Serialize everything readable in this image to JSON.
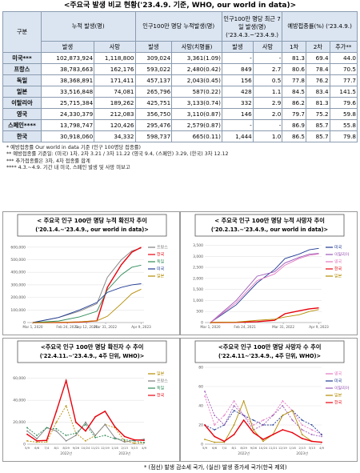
{
  "title": "<주요국 발생 비교 현황('23.4.9. 기준, WHO, our world in data)>",
  "table": {
    "headers": [
      "구분",
      "누적 발생(명)",
      "인구100만 명당 누적발생(명)",
      "인구100만 명당 최근 7일 발생(명) ('23.4.3.~'23.4.9.)",
      "예방접종률(%) ('23.4.9.)"
    ],
    "subheaders": [
      "발생",
      "사망",
      "발생",
      "사망(치명률)",
      "발생",
      "사망",
      "1차",
      "2차",
      "추가**"
    ],
    "rows": [
      [
        "미국***",
        "102,873,924",
        "1,118,800",
        "309,024",
        "3,361(1.09)",
        "-",
        "-",
        "81.3",
        "69.4",
        "44.0"
      ],
      [
        "프랑스",
        "38,783,663",
        "162,176",
        "593,022",
        "2,480(0.42)",
        "849",
        "2.7",
        "80.6",
        "78.4",
        "70.5"
      ],
      [
        "독일",
        "38,368,891",
        "171,411",
        "457,137",
        "2,043(0.45)",
        "156",
        "0.5",
        "77.8",
        "76.2",
        "77.7"
      ],
      [
        "일본",
        "33,516,848",
        "74,081",
        "265,796",
        "587(0.22)",
        "428",
        "1.1",
        "84.5",
        "83.4",
        "141.5"
      ],
      [
        "이탈리아",
        "25,715,384",
        "189,262",
        "425,751",
        "3,133(0.74)",
        "332",
        "2.9",
        "86.2",
        "81.3",
        "79.6"
      ],
      [
        "영국",
        "24,330,379",
        "212,083",
        "356,750",
        "3,110(0.87)",
        "146",
        "2.0",
        "79.7",
        "75.2",
        "59.8"
      ],
      [
        "스페인****",
        "13,798,747",
        "120,426",
        "295,476",
        "2,579(0.87)",
        "-",
        "-",
        "86.9",
        "85.7",
        "55.8"
      ],
      [
        "한국",
        "30,918,060",
        "34,332",
        "598,737",
        "665(0.11)",
        "1,444",
        "1.0",
        "86.5",
        "85.7",
        "79.8"
      ]
    ]
  },
  "notes": [
    "* 예방접종률 Our world in data 기준 (인구 100명당 접종률)",
    "** 예방접종률 기준일: (미국) 1차, 2차 3.21 / 3차 11.22 (영국 9.4, (스페인) 3.29, (한국) 3차 12.12",
    "*** 추가접종률은 3차, 4차 접종률 합계",
    "**** 4.3.~4.9. 기간 내 미국, 스페인 발생 및 사망 미보고"
  ],
  "charts": [
    {
      "type": "line",
      "title": "< 주요국 인구 100만 명당 누적 확진자 추이",
      "subtitle": "('20.1.4.~'23.4.9., our world in data)>",
      "x": [
        2020.16,
        2020.9,
        2021.5,
        2022.0,
        2022.3,
        2022.7,
        2023.0,
        2023.27
      ],
      "xlim": [
        2020.0,
        2023.35
      ],
      "xticks": [
        {
          "value": 2020.16,
          "label": "Mar 1, 2020"
        },
        {
          "value": 2021.15,
          "label": "Feb 24, 2021"
        },
        {
          "value": 2021.7,
          "label": "Sep 12, 2021"
        },
        {
          "value": 2022.25,
          "label": "Mar 31, 2022"
        },
        {
          "value": 2023.27,
          "label": "Apr 9, 2023"
        }
      ],
      "ylim": [
        0,
        650000
      ],
      "yticks": [
        0,
        {
          "value": 100000,
          "label": "100,000"
        },
        {
          "value": 200000,
          "label": "200,000"
        },
        {
          "value": 300000,
          "label": "300,000"
        },
        {
          "value": 400000,
          "label": "400,000"
        },
        {
          "value": 500000,
          "label": "500,000"
        },
        {
          "value": 600000,
          "label": "600,000"
        }
      ],
      "series": [
        {
          "name": "프랑스",
          "color": "#7f7f7f",
          "values": [
            0,
            40000,
            90000,
            150000,
            360000,
            500000,
            570000,
            593022
          ]
        },
        {
          "name": "한국",
          "color": "#e8000b",
          "values": [
            0,
            700,
            3500,
            14000,
            280000,
            460000,
            560000,
            598737
          ]
        },
        {
          "name": "독일",
          "color": "#2e8b57",
          "values": [
            0,
            12000,
            45000,
            90000,
            260000,
            380000,
            440000,
            457137
          ]
        },
        {
          "name": "미국",
          "color": "#1f3a93",
          "values": [
            0,
            40000,
            100000,
            160000,
            240000,
            280000,
            300000,
            309024
          ]
        },
        {
          "name": "일본",
          "color": "#b48c00",
          "values": [
            0,
            1000,
            6000,
            14000,
            50000,
            150000,
            230000,
            265796
          ]
        }
      ]
    },
    {
      "type": "line",
      "title": "< 주요국 인구 100만 명당 누적 사망자 추이",
      "subtitle": "('20.2.13.~'23.4.9., our world in data)>",
      "x": [
        2020.16,
        2020.9,
        2021.5,
        2022.0,
        2022.3,
        2022.7,
        2023.0,
        2023.27
      ],
      "xlim": [
        2020.0,
        2023.35
      ],
      "xticks": [
        {
          "value": 2020.16,
          "label": "Mar 1, 2020"
        },
        {
          "value": 2021.15,
          "label": "Feb 24, 2021"
        },
        {
          "value": 2022.25,
          "label": "Mar 31, 2022"
        },
        {
          "value": 2023.27,
          "label": "Apr 9, 2023"
        }
      ],
      "ylim": [
        0,
        3700
      ],
      "yticks": [
        0,
        500,
        {
          "value": 1000,
          "label": "1,000"
        },
        {
          "value": 1500,
          "label": "1,500"
        },
        {
          "value": 2000,
          "label": "2,000"
        },
        {
          "value": 2500,
          "label": "2,500"
        },
        {
          "value": 3000,
          "label": "3,000"
        },
        {
          "value": 3500,
          "label": "3,500"
        }
      ],
      "series": [
        {
          "name": "미국",
          "color": "#1f3a93",
          "values": [
            0,
            800,
            1800,
            2400,
            2900,
            3100,
            3300,
            3361
          ]
        },
        {
          "name": "이탈리아",
          "color": "#9b59b6",
          "values": [
            0,
            1000,
            2100,
            2300,
            2700,
            2950,
            3100,
            3133
          ]
        },
        {
          "name": "영국",
          "color": "#e377c2",
          "values": [
            0,
            900,
            1900,
            2200,
            2600,
            2900,
            3050,
            3110
          ]
        },
        {
          "name": "한국",
          "color": "#e8000b",
          "values": [
            0,
            10,
            40,
            100,
            400,
            530,
            620,
            665
          ]
        },
        {
          "name": "일본",
          "color": "#b48c00",
          "values": [
            0,
            20,
            100,
            150,
            250,
            350,
            500,
            587
          ]
        }
      ]
    },
    {
      "type": "line",
      "title": "<주요국 인구 100만 명당 확진자 수 추이",
      "subtitle": "('22.4.11.~'23.4.9., 4주 단위, WHO)>",
      "categories": [
        "5/9",
        "6/6",
        "7/4",
        "8/1",
        "8/29",
        "9/26",
        "10/24",
        "11/21",
        "12/19",
        "1/16",
        "2/13",
        "3/13",
        "4/9"
      ],
      "xgroups": [
        "2022년",
        "2023년"
      ],
      "ylim": [
        0,
        70000
      ],
      "yticks": [
        0,
        {
          "value": 20000,
          "label": "20,000"
        },
        {
          "value": 40000,
          "label": "40,000"
        },
        {
          "value": 60000,
          "label": "60,000"
        }
      ],
      "series": [
        {
          "name": "일본",
          "color": "#b48c00",
          "dashed": true,
          "values": [
            3000,
            1800,
            2000,
            20000,
            35000,
            10000,
            3000,
            8000,
            18000,
            15000,
            3000,
            1000,
            1200
          ]
        },
        {
          "name": "프랑스",
          "color": "#7f7f7f",
          "dashed": false,
          "values": [
            12000,
            5000,
            15000,
            12000,
            3000,
            8000,
            20000,
            8000,
            18000,
            6000,
            2000,
            3500,
            4500
          ]
        },
        {
          "name": "독일",
          "color": "#2e8b57",
          "dashed": true,
          "values": [
            15000,
            8000,
            15000,
            14000,
            8000,
            10000,
            18000,
            6000,
            8000,
            5000,
            4000,
            3000,
            1500
          ]
        },
        {
          "name": "한국",
          "color": "#e8000b",
          "dashed": false,
          "values": [
            9000,
            3000,
            3500,
            30000,
            58000,
            20000,
            12000,
            25000,
            30000,
            16000,
            7000,
            4000,
            3500
          ]
        }
      ]
    },
    {
      "type": "line",
      "title": "<주요국 인구 100만 명당 사망자 수 추이",
      "subtitle": "('22.4.11~'23.4.9., 4주 단위, WHO)>",
      "categories": [
        "5/9",
        "6/6",
        "7/4",
        "8/1",
        "8/29",
        "9/26",
        "10/24",
        "11/21",
        "12/19",
        "1/16",
        "2/13",
        "3/13",
        "4/9"
      ],
      "xgroups": [
        "2022년",
        "2023년"
      ],
      "ylim": [
        0,
        80
      ],
      "yticks": [
        0,
        20,
        40,
        60,
        80
      ],
      "series": [
        {
          "name": "영국",
          "color": "#e377c2",
          "dashed": true,
          "values": [
            50,
            20,
            30,
            45,
            30,
            20,
            25,
            30,
            45,
            35,
            20,
            15,
            10
          ]
        },
        {
          "name": "미국",
          "color": "#1f3a93",
          "dashed": true,
          "values": [
            20,
            15,
            20,
            35,
            30,
            25,
            20,
            20,
            30,
            35,
            25,
            20,
            10
          ]
        },
        {
          "name": "이탈리아",
          "color": "#9b59b6",
          "dashed": true,
          "values": [
            55,
            30,
            20,
            40,
            30,
            15,
            20,
            30,
            40,
            25,
            15,
            10,
            8
          ]
        },
        {
          "name": "일본",
          "color": "#b48c00",
          "dashed": false,
          "values": [
            5,
            2,
            2,
            20,
            45,
            15,
            3,
            10,
            30,
            35,
            10,
            3,
            2
          ]
        },
        {
          "name": "한국",
          "color": "#e8000b",
          "dashed": false,
          "values": [
            20,
            8,
            3,
            10,
            25,
            12,
            5,
            10,
            15,
            12,
            6,
            3,
            2
          ]
        }
      ]
    }
  ],
  "footnote": "* (점선) 발생 감소세 국가, (실선) 발생 증가세 국가(한국 제외)"
}
